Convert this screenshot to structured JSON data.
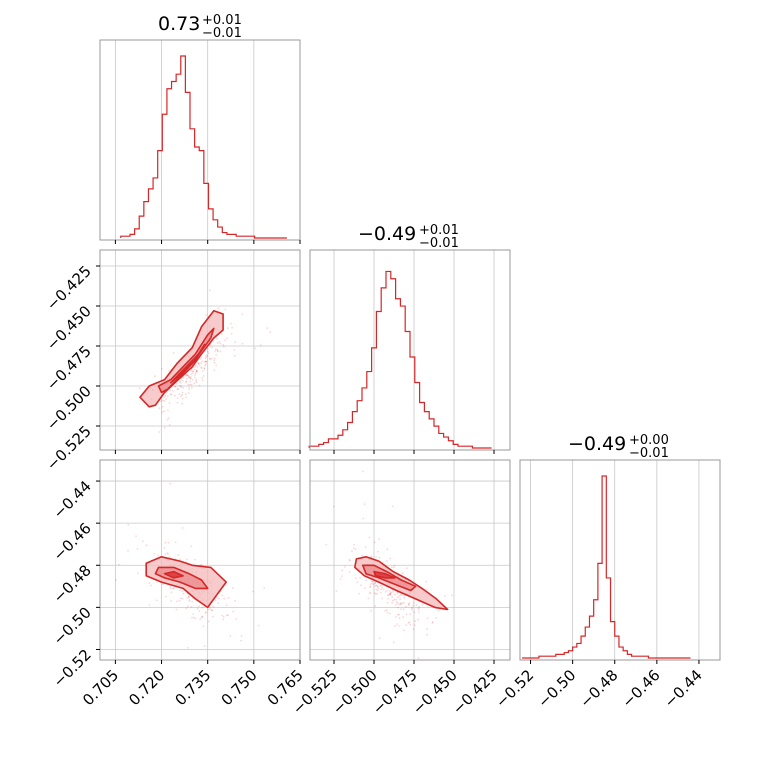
{
  "colors": {
    "accent": "#d62728",
    "fill_light": "#f4b9b9",
    "fill_mid": "#e98384",
    "grid": "#c8c8c8",
    "frame": "#999999"
  },
  "titles": {
    "p0": {
      "value": "0.73",
      "sup": "+0.01",
      "sub": "−0.01"
    },
    "p1": {
      "value": "−0.49",
      "sup": "+0.01",
      "sub": "−0.01"
    },
    "p2": {
      "value": "−0.49",
      "sup": "+0.00",
      "sub": "−0.01"
    }
  },
  "ticks": {
    "p0": [
      "0.705",
      "0.720",
      "0.735",
      "0.750",
      "0.765"
    ],
    "p1": [
      "−0.525",
      "−0.500",
      "−0.475",
      "−0.450",
      "−0.425"
    ],
    "p2": [
      "−0.52",
      "−0.50",
      "−0.48",
      "−0.46",
      "−0.44"
    ]
  },
  "chart_data": {
    "type": "corner",
    "parameters": [
      "p0",
      "p1",
      "p2"
    ],
    "medians": [
      0.73,
      -0.49,
      -0.49
    ],
    "upper_err": [
      0.01,
      0.01,
      0.0
    ],
    "lower_err": [
      0.01,
      0.01,
      0.01
    ],
    "ranges": [
      [
        0.7,
        0.765
      ],
      [
        -0.54,
        -0.415
      ],
      [
        -0.525,
        -0.43
      ]
    ],
    "tick_values": [
      [
        0.705,
        0.72,
        0.735,
        0.75,
        0.765
      ],
      [
        -0.525,
        -0.5,
        -0.475,
        -0.45,
        -0.425
      ],
      [
        -0.52,
        -0.5,
        -0.48,
        -0.46,
        -0.44
      ]
    ],
    "histograms": [
      {
        "param": "p0",
        "x": [
          0.7075,
          0.709,
          0.7105,
          0.712,
          0.7135,
          0.715,
          0.7165,
          0.718,
          0.7195,
          0.721,
          0.7225,
          0.724,
          0.7255,
          0.727,
          0.7285,
          0.73,
          0.7315,
          0.733,
          0.7345,
          0.736,
          0.7375,
          0.739,
          0.7405,
          0.742,
          0.7435,
          0.745,
          0.7465,
          0.748,
          0.7495,
          0.751,
          0.7525,
          0.754,
          0.7555,
          0.757,
          0.7585,
          0.76
        ],
        "counts": [
          0.01,
          0.01,
          0.02,
          0.05,
          0.12,
          0.2,
          0.27,
          0.33,
          0.48,
          0.68,
          0.82,
          0.86,
          0.9,
          1.0,
          0.8,
          0.6,
          0.5,
          0.48,
          0.3,
          0.16,
          0.1,
          0.06,
          0.03,
          0.02,
          0.02,
          0.01,
          0.01,
          0.01,
          0.01,
          0.0,
          0.0,
          0.0,
          0.0,
          0.0,
          0.0,
          0.0
        ]
      },
      {
        "param": "p1",
        "x": [
          -0.539,
          -0.536,
          -0.533,
          -0.53,
          -0.527,
          -0.524,
          -0.521,
          -0.518,
          -0.515,
          -0.512,
          -0.509,
          -0.506,
          -0.503,
          -0.5,
          -0.497,
          -0.494,
          -0.491,
          -0.488,
          -0.485,
          -0.482,
          -0.479,
          -0.476,
          -0.473,
          -0.47,
          -0.467,
          -0.464,
          -0.461,
          -0.458,
          -0.455,
          -0.452,
          -0.449,
          -0.446,
          -0.443,
          -0.44,
          -0.437,
          -0.434,
          -0.431,
          -0.428
        ],
        "counts": [
          0.01,
          0.01,
          0.02,
          0.03,
          0.05,
          0.05,
          0.07,
          0.1,
          0.14,
          0.2,
          0.26,
          0.33,
          0.42,
          0.55,
          0.75,
          0.88,
          0.97,
          0.93,
          0.82,
          0.78,
          0.64,
          0.5,
          0.36,
          0.25,
          0.2,
          0.16,
          0.12,
          0.08,
          0.06,
          0.04,
          0.02,
          0.01,
          0.01,
          0.01,
          0.0,
          0.0,
          0.0,
          0.0
        ]
      },
      {
        "param": "p2",
        "x": [
          -0.523,
          -0.521,
          -0.519,
          -0.517,
          -0.515,
          -0.513,
          -0.511,
          -0.509,
          -0.507,
          -0.505,
          -0.503,
          -0.501,
          -0.499,
          -0.497,
          -0.495,
          -0.493,
          -0.491,
          -0.489,
          -0.487,
          -0.485,
          -0.483,
          -0.481,
          -0.479,
          -0.477,
          -0.475,
          -0.473,
          -0.471,
          -0.469,
          -0.467,
          -0.465,
          -0.463,
          -0.461,
          -0.459,
          -0.457,
          -0.455,
          -0.453,
          -0.451,
          -0.449,
          -0.447,
          -0.445
        ],
        "counts": [
          0.0,
          0.0,
          0.0,
          0.0,
          0.01,
          0.01,
          0.01,
          0.01,
          0.02,
          0.02,
          0.03,
          0.04,
          0.06,
          0.08,
          0.12,
          0.17,
          0.23,
          0.32,
          0.52,
          1.0,
          0.44,
          0.2,
          0.12,
          0.06,
          0.04,
          0.02,
          0.01,
          0.01,
          0.01,
          0.01,
          0.0,
          0.0,
          0.0,
          0.0,
          0.0,
          0.0,
          0.0,
          0.0,
          0.0,
          0.0
        ]
      }
    ],
    "contours_2d": [
      {
        "x_param": "p0",
        "y_param": "p1",
        "outer": [
          [
            0.716,
            -0.513
          ],
          [
            0.713,
            -0.507
          ],
          [
            0.716,
            -0.5
          ],
          [
            0.721,
            -0.496
          ],
          [
            0.725,
            -0.486
          ],
          [
            0.73,
            -0.476
          ],
          [
            0.733,
            -0.463
          ],
          [
            0.737,
            -0.453
          ],
          [
            0.74,
            -0.455
          ],
          [
            0.74,
            -0.465
          ],
          [
            0.737,
            -0.47
          ],
          [
            0.733,
            -0.48
          ],
          [
            0.73,
            -0.488
          ],
          [
            0.726,
            -0.495
          ],
          [
            0.721,
            -0.504
          ],
          [
            0.718,
            -0.512
          ]
        ],
        "inner": [
          [
            0.72,
            -0.504
          ],
          [
            0.719,
            -0.5
          ],
          [
            0.723,
            -0.496
          ],
          [
            0.727,
            -0.488
          ],
          [
            0.731,
            -0.48
          ],
          [
            0.735,
            -0.468
          ],
          [
            0.737,
            -0.464
          ],
          [
            0.736,
            -0.47
          ],
          [
            0.733,
            -0.478
          ],
          [
            0.73,
            -0.486
          ],
          [
            0.726,
            -0.494
          ],
          [
            0.722,
            -0.502
          ]
        ],
        "core": [
          [
            0.723,
            -0.498
          ],
          [
            0.727,
            -0.491
          ],
          [
            0.731,
            -0.484
          ],
          [
            0.734,
            -0.474
          ],
          [
            0.732,
            -0.48
          ],
          [
            0.728,
            -0.488
          ],
          [
            0.724,
            -0.496
          ]
        ]
      },
      {
        "x_param": "p0",
        "y_param": "p2",
        "outer": [
          [
            0.715,
            -0.485
          ],
          [
            0.715,
            -0.479
          ],
          [
            0.72,
            -0.476
          ],
          [
            0.726,
            -0.478
          ],
          [
            0.73,
            -0.48
          ],
          [
            0.736,
            -0.481
          ],
          [
            0.741,
            -0.488
          ],
          [
            0.738,
            -0.494
          ],
          [
            0.735,
            -0.5
          ],
          [
            0.731,
            -0.496
          ],
          [
            0.727,
            -0.491
          ],
          [
            0.72,
            -0.488
          ]
        ],
        "inner": [
          [
            0.718,
            -0.484
          ],
          [
            0.719,
            -0.481
          ],
          [
            0.724,
            -0.481
          ],
          [
            0.729,
            -0.484
          ],
          [
            0.733,
            -0.487
          ],
          [
            0.735,
            -0.491
          ],
          [
            0.731,
            -0.491
          ],
          [
            0.726,
            -0.488
          ],
          [
            0.721,
            -0.486
          ]
        ],
        "core": [
          [
            0.721,
            -0.484
          ],
          [
            0.724,
            -0.483
          ],
          [
            0.727,
            -0.485
          ],
          [
            0.724,
            -0.486
          ]
        ]
      },
      {
        "x_param": "p1",
        "y_param": "p2",
        "outer": [
          [
            -0.511,
            -0.477
          ],
          [
            -0.505,
            -0.476
          ],
          [
            -0.497,
            -0.478
          ],
          [
            -0.488,
            -0.483
          ],
          [
            -0.478,
            -0.487
          ],
          [
            -0.47,
            -0.491
          ],
          [
            -0.461,
            -0.496
          ],
          [
            -0.454,
            -0.501
          ],
          [
            -0.462,
            -0.5
          ],
          [
            -0.474,
            -0.496
          ],
          [
            -0.486,
            -0.492
          ],
          [
            -0.497,
            -0.488
          ],
          [
            -0.506,
            -0.485
          ],
          [
            -0.512,
            -0.481
          ]
        ],
        "inner": [
          [
            -0.507,
            -0.48
          ],
          [
            -0.5,
            -0.48
          ],
          [
            -0.492,
            -0.483
          ],
          [
            -0.483,
            -0.487
          ],
          [
            -0.474,
            -0.49
          ],
          [
            -0.477,
            -0.492
          ],
          [
            -0.487,
            -0.489
          ],
          [
            -0.497,
            -0.486
          ],
          [
            -0.505,
            -0.484
          ]
        ],
        "core": [
          [
            -0.5,
            -0.483
          ],
          [
            -0.493,
            -0.484
          ],
          [
            -0.487,
            -0.486
          ],
          [
            -0.493,
            -0.486
          ],
          [
            -0.499,
            -0.485
          ]
        ]
      }
    ]
  }
}
